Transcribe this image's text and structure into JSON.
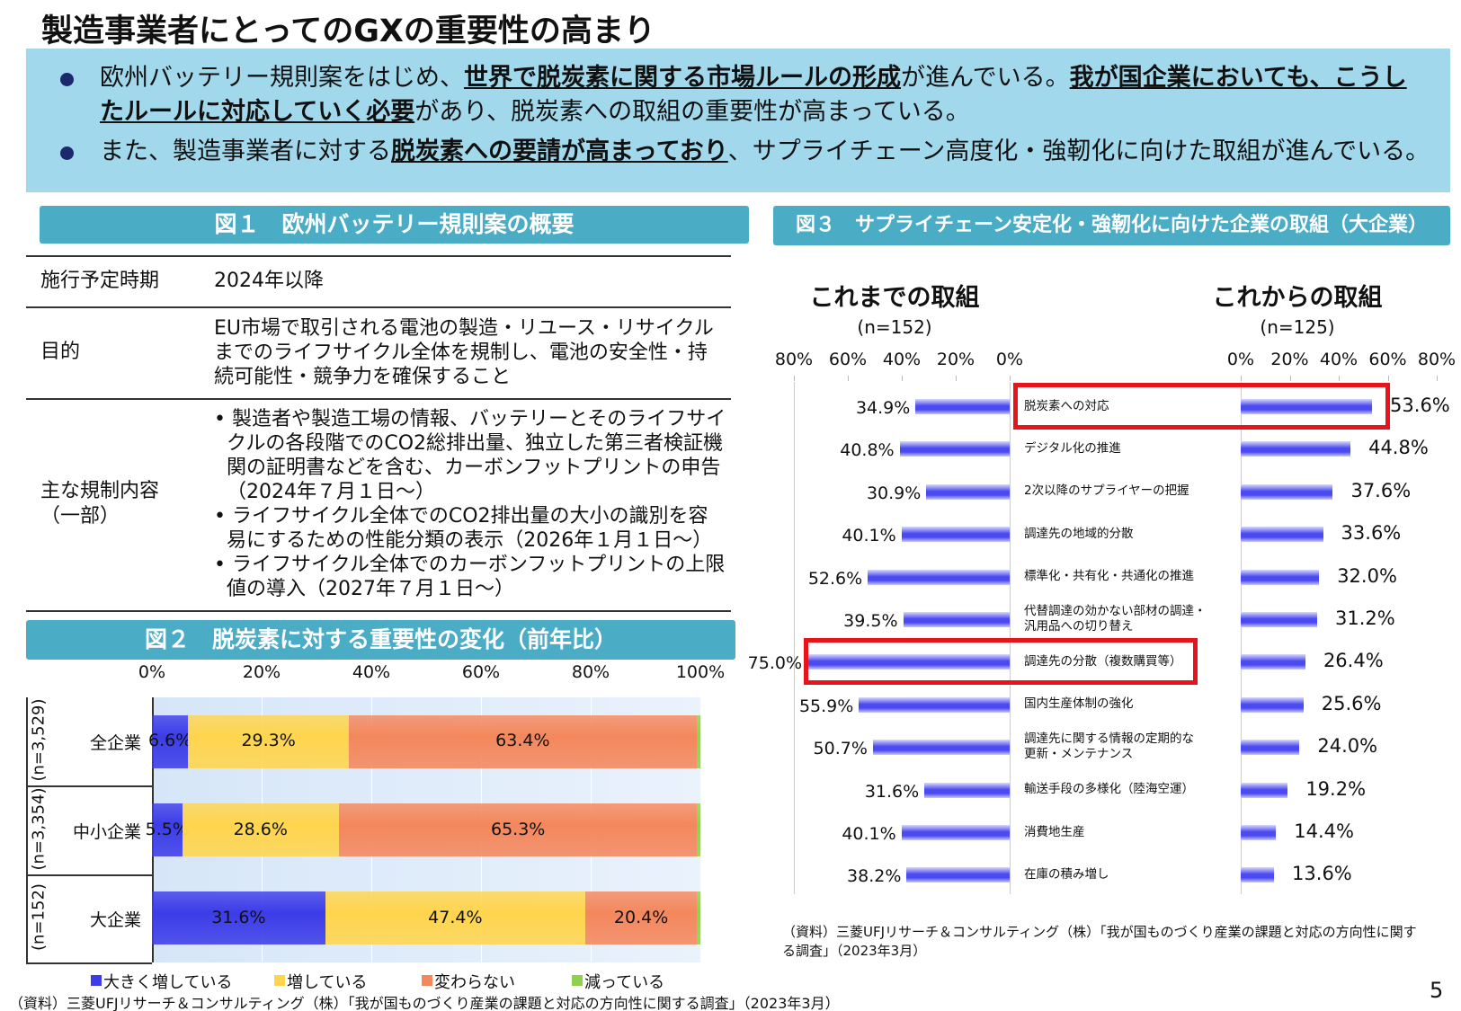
{
  "title": "製造事業者にとってのGXの重要性の高まり",
  "bullets": [
    {
      "segments": [
        {
          "text": "欧州バッテリー規則案をはじめ、",
          "bold": false
        },
        {
          "text": "世界で脱炭素に関する市場ルールの形成",
          "bold": true
        },
        {
          "text": "が進んでいる。",
          "bold": false
        },
        {
          "text": "我が国企業においても、こうしたルールに対応していく必要",
          "bold": true
        },
        {
          "text": "があり、脱炭素への取組の重要性が高まっている。",
          "bold": false
        }
      ]
    },
    {
      "segments": [
        {
          "text": "また、製造事業者に対する",
          "bold": false
        },
        {
          "text": "脱炭素への要請が高まっており",
          "bold": true
        },
        {
          "text": "、サプライチェーン高度化・強靭化に向けた取組が進んでいる。",
          "bold": false
        }
      ]
    }
  ],
  "figure1": {
    "title": "図１　欧州バッテリー規則案の概要",
    "rows": [
      {
        "label": [
          "施行予定時期"
        ],
        "items": [
          "2024年以降"
        ]
      },
      {
        "label": [
          "目的"
        ],
        "items": [
          "EU市場で取引される電池の製造・リユース・リサイクルまでのライフサイクル全体を規制し、電池の安全性・持続可能性・競争力を確保すること"
        ]
      },
      {
        "label": [
          "主な規制内容",
          "（一部）"
        ],
        "items": [
          "• 製造者や製造工場の情報、バッテリーとそのライフサイクルの各段階でのCO2総排出量、独立した第三者検証機関の証明書などを含む、カーボンフットプリントの申告（2024年７月１日～）",
          "• ライフサイクル全体でのCO2排出量の大小の識別を容易にするための性能分類の表示（2026年１月１日～）",
          "• ライフサイクル全体でのカーボンフットプリントの上限値の導入（2027年７月１日～）"
        ]
      }
    ]
  },
  "chart_data": [
    {
      "type": "stacked_hbar",
      "title": "図２　脱炭素に対する重要性の変化（前年比）",
      "categories": [
        "全企業",
        "中小企業",
        "大企業"
      ],
      "sample_sizes": [
        "(n=3,529)",
        "(n=3,354)",
        "(n=152)"
      ],
      "series": [
        {
          "name": "大きく増している",
          "color": "#3c3ce8",
          "values": [
            6.6,
            5.5,
            31.6
          ],
          "value_labels": [
            "6.6%",
            "5.5%",
            "31.6%"
          ]
        },
        {
          "name": "増している",
          "color": "#ffd54d",
          "values": [
            29.3,
            28.6,
            47.4
          ],
          "value_labels": [
            "29.3%",
            "28.6%",
            "47.4%"
          ]
        },
        {
          "name": "変わらない",
          "color": "#f4875c",
          "values": [
            63.4,
            65.3,
            20.4
          ],
          "value_labels": [
            "63.4%",
            "65.3%",
            "20.4%"
          ]
        },
        {
          "name": "減っている",
          "color": "#8fd14f",
          "values": [
            0.7,
            0.6,
            0.6
          ],
          "value_labels": [
            null,
            null,
            null
          ]
        }
      ],
      "xlim": [
        0,
        100
      ],
      "xticks": [
        {
          "value": 0,
          "label": "0%"
        },
        {
          "value": 20,
          "label": "20%"
        },
        {
          "value": 40,
          "label": "40%"
        },
        {
          "value": 60,
          "label": "60%"
        },
        {
          "value": 80,
          "label": "80%"
        },
        {
          "value": 100,
          "label": "100%"
        }
      ],
      "grid": true,
      "source": "（資料）三菱UFJリサーチ＆コンサルティング（株）「我が国ものづくり産業の課題と対応の方向性に関する調査」（2023年3月）"
    },
    {
      "type": "butterfly",
      "title": "図３　サプライチェーン安定化・強靭化に向けた企業の取組（大企業）",
      "categories": [
        "脱炭素への対応",
        "デジタル化の推進",
        "2次以降のサプライヤーの把握",
        "調達先の地域的分散",
        "標準化・共有化・共通化の推進",
        "代替調達の効かない部材の調達・\n汎用品への切り替え",
        "調達先の分散（複数購買等）",
        "国内生産体制の強化",
        "調達先に関する情報の定期的な\n更新・メンテナンス",
        "輸送手段の多様化（陸海空運）",
        "消費地生産",
        "在庫の積み増し"
      ],
      "series": [
        {
          "name": "これまでの取組",
          "sample_size": "(n=152)",
          "color": "#4a4af0",
          "values": [
            34.9,
            40.8,
            30.9,
            40.1,
            52.6,
            39.5,
            75.0,
            55.9,
            50.7,
            31.6,
            40.1,
            38.2
          ],
          "value_labels": [
            "34.9%",
            "40.8%",
            "30.9%",
            "40.1%",
            "52.6%",
            "39.5%",
            "75.0%",
            "55.9%",
            "50.7%",
            "31.6%",
            "40.1%",
            "38.2%"
          ]
        },
        {
          "name": "これからの取組",
          "sample_size": "(n=125)",
          "color": "#4a4af0",
          "values": [
            53.6,
            44.8,
            37.6,
            33.6,
            32.0,
            31.2,
            26.4,
            25.6,
            24.0,
            19.2,
            14.4,
            13.6
          ],
          "value_labels": [
            "53.6%",
            "44.8%",
            "37.6%",
            "33.6%",
            "32.0%",
            "31.2%",
            "26.4%",
            "25.6%",
            "24.0%",
            "19.2%",
            "14.4%",
            "13.6%"
          ]
        }
      ],
      "xlim": [
        0,
        80
      ],
      "xticks": [
        {
          "value": 0,
          "label": "0%"
        },
        {
          "value": 20,
          "label": "20%"
        },
        {
          "value": 40,
          "label": "40%"
        },
        {
          "value": 60,
          "label": "60%"
        },
        {
          "value": 80,
          "label": "80%"
        }
      ],
      "highlight": [
        0,
        6
      ],
      "source": "（資料）三菱UFJリサーチ＆コンサルティング（株）「我が国ものづくり産業の課題と対応の方向性に関する調査」（2023年3月）"
    }
  ],
  "page_number": "5"
}
